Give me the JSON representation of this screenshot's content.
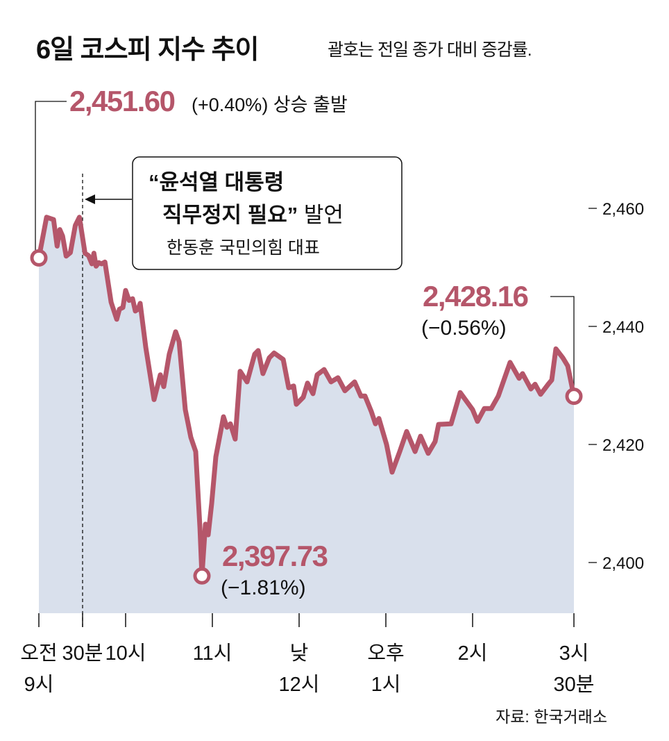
{
  "chart_data": {
    "type": "area",
    "title": "6일 코스피 지수 추이",
    "subtitle": "괄호는 전일 종가 대비 증감률.",
    "source": "자료: 한국거래소",
    "xlabel": "",
    "ylabel": "",
    "ylim": [
      2390,
      2470
    ],
    "yticks": [
      2460,
      2440,
      2420,
      2400
    ],
    "ytick_labels": [
      "2,460",
      "2,440",
      "2,420",
      "2,400"
    ],
    "x_unit": "minutes since 09:00",
    "xticks": [
      0,
      30,
      60,
      120,
      180,
      240,
      300,
      390
    ],
    "xtick_labels": [
      [
        "오전",
        "9시"
      ],
      [
        "30분"
      ],
      [
        "10시"
      ],
      [
        "11시"
      ],
      [
        "낮",
        "12시"
      ],
      [
        "오후",
        "1시"
      ],
      [
        "2시"
      ],
      [
        "3시",
        "30분"
      ]
    ],
    "line_color": "#b5566a",
    "fill_color": "#d9e0ec",
    "x": [
      0,
      5.3,
      10.1,
      12.5,
      14.4,
      16.3,
      18.7,
      21.6,
      25,
      27.8,
      31.7,
      34.1,
      36.5,
      37.9,
      39.4,
      41.3,
      43.2,
      45.6,
      49.9,
      53.8,
      55.7,
      58.1,
      60,
      62.4,
      64.8,
      66.7,
      68.6,
      70.1,
      73.9,
      79.7,
      84,
      86.4,
      90.2,
      94.6,
      97,
      101.3,
      105.1,
      108.5,
      111.4,
      112.8,
      115.2,
      117.1,
      119.5,
      122.4,
      127.7,
      130.1,
      132.5,
      135.8,
      139.2,
      144,
      149.3,
      151.7,
      155,
      159.4,
      162.7,
      169,
      172.8,
      176.2,
      178.1,
      182.9,
      185.8,
      189.6,
      192.5,
      197.3,
      202.1,
      206.9,
      211.7,
      218.4,
      222.7,
      225.6,
      229.9,
      232.8,
      235.2,
      240.5,
      244.3,
      249.6,
      254.4,
      260.2,
      264,
      269.3,
      274.1,
      276.5,
      285.1,
      291.4,
      300,
      304.3,
      310.5,
      316.6,
      322.8,
      333.3,
      341.3,
      344.4,
      351.8,
      355.5,
      360.4,
      367.2,
      370.3,
      374,
      380.1,
      384.5,
      390
    ],
    "values": [
      2451.6,
      2458.5,
      2458.1,
      2453.6,
      2456.4,
      2455.3,
      2451.9,
      2452.5,
      2457.1,
      2458.5,
      2452.4,
      2452.0,
      2450.6,
      2452.4,
      2450.2,
      2450.8,
      2450.6,
      2450.9,
      2444.1,
      2441.2,
      2442.9,
      2443.2,
      2446.1,
      2444.4,
      2444.7,
      2442.6,
      2442.9,
      2443.9,
      2436.5,
      2427.6,
      2431.8,
      2429.8,
      2435.3,
      2439.1,
      2437.4,
      2425.9,
      2421.2,
      2418.8,
      2405.9,
      2397.73,
      2406.5,
      2404.7,
      2410.0,
      2417.9,
      2424.7,
      2422.9,
      2423.5,
      2420.9,
      2432.4,
      2430.6,
      2435.3,
      2435.9,
      2432.0,
      2434.7,
      2435.5,
      2434.4,
      2429.6,
      2429.9,
      2426.8,
      2428.0,
      2430.4,
      2428.6,
      2431.8,
      2432.7,
      2430.6,
      2431.3,
      2429.1,
      2430.6,
      2428.2,
      2428.2,
      2425.6,
      2423.5,
      2424.4,
      2420.0,
      2415.3,
      2418.8,
      2422.2,
      2418.8,
      2421.4,
      2418.5,
      2420.5,
      2423.4,
      2423.5,
      2428.8,
      2425.9,
      2423.9,
      2426.1,
      2426.1,
      2428.2,
      2433.9,
      2431.2,
      2432.0,
      2429.4,
      2430.2,
      2428.5,
      2430.2,
      2430.9,
      2436.2,
      2434.7,
      2433.3,
      2428.16
    ],
    "annotations": {
      "open": {
        "value": "2,451.60",
        "note": "(+0.40%) 상승 출발"
      },
      "low": {
        "value": "2,397.73",
        "note": "(−1.81%)"
      },
      "close": {
        "value": "2,428.16",
        "note": "(−0.56%)"
      },
      "event": {
        "quote_line1": "“윤석열 대통령",
        "quote_line2": "직무정지 필요”",
        "suffix": " 발언",
        "speaker": "한동훈 국민의힘 대표"
      }
    }
  }
}
